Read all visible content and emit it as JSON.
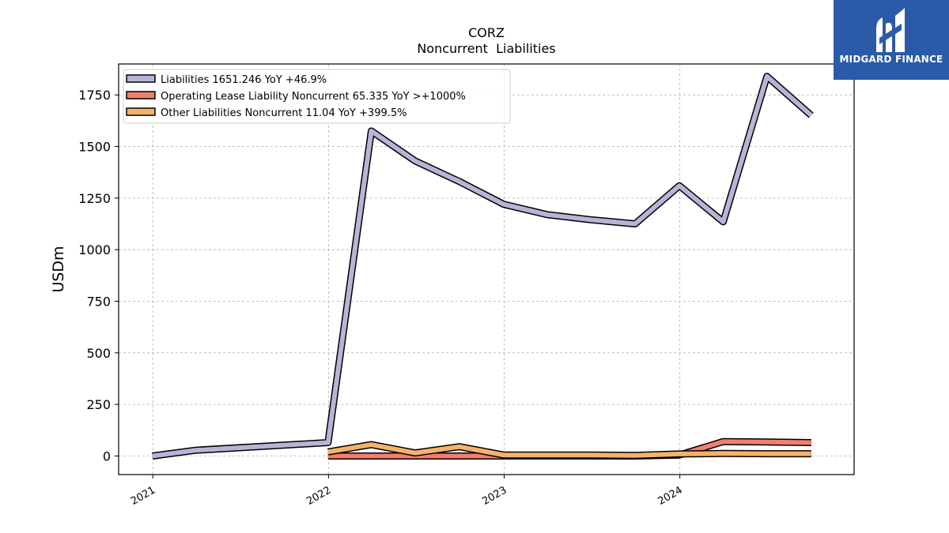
{
  "logo": {
    "text": "MIDGARD FINANCE",
    "icon": "midgard-logo-icon",
    "color": "#2b5aa8"
  },
  "chart_data": {
    "type": "line",
    "title": "CORZ",
    "subtitle": "Noncurrent  Liabilities",
    "xlabel": "",
    "ylabel": "USDm",
    "x_tick_labels": [
      "2021",
      "2022",
      "2023",
      "2024"
    ],
    "y_ticks": [
      0,
      250,
      500,
      750,
      1000,
      1250,
      1500,
      1750
    ],
    "ylim": [
      -90,
      1900
    ],
    "xlim": [
      "2020-10-22",
      "2024-12-28"
    ],
    "grid": true,
    "legend_position": "top-left",
    "series": [
      {
        "name": "Liabilities  1651.246 YoY +46.9%",
        "color": "#b8b4d8",
        "points": [
          [
            "2020-12-31",
            0
          ],
          [
            "2021-03-31",
            28
          ],
          [
            "2021-12-31",
            65
          ],
          [
            "2022-03-31",
            1575
          ],
          [
            "2022-06-30",
            1430
          ],
          [
            "2022-09-30",
            1330
          ],
          [
            "2022-12-31",
            1220
          ],
          [
            "2023-03-31",
            1170
          ],
          [
            "2023-06-30",
            1145
          ],
          [
            "2023-09-30",
            1125
          ],
          [
            "2023-12-31",
            1310
          ],
          [
            "2024-03-31",
            1135
          ],
          [
            "2024-06-30",
            1840
          ],
          [
            "2024-09-30",
            1651
          ]
        ]
      },
      {
        "name": "Operating Lease Liability Noncurrent  65.335 YoY >+1000%",
        "color": "#f07f6e",
        "points": [
          [
            "2021-12-31",
            0
          ],
          [
            "2022-03-31",
            0
          ],
          [
            "2022-06-30",
            0
          ],
          [
            "2022-09-30",
            0
          ],
          [
            "2022-12-31",
            0
          ],
          [
            "2023-03-31",
            0
          ],
          [
            "2023-06-30",
            0
          ],
          [
            "2023-09-30",
            0
          ],
          [
            "2023-12-31",
            5
          ],
          [
            "2024-03-31",
            70
          ],
          [
            "2024-06-30",
            68
          ],
          [
            "2024-09-30",
            65
          ]
        ]
      },
      {
        "name": "Other Liabilities Noncurrent  11.04 YoY +399.5%",
        "color": "#f5b26b",
        "points": [
          [
            "2021-12-31",
            20
          ],
          [
            "2022-03-31",
            55
          ],
          [
            "2022-06-30",
            15
          ],
          [
            "2022-09-30",
            45
          ],
          [
            "2022-12-31",
            5
          ],
          [
            "2023-03-31",
            5
          ],
          [
            "2023-06-30",
            5
          ],
          [
            "2023-09-30",
            3
          ],
          [
            "2023-12-31",
            10
          ],
          [
            "2024-03-31",
            12
          ],
          [
            "2024-06-30",
            11
          ],
          [
            "2024-09-30",
            11
          ]
        ]
      }
    ]
  }
}
